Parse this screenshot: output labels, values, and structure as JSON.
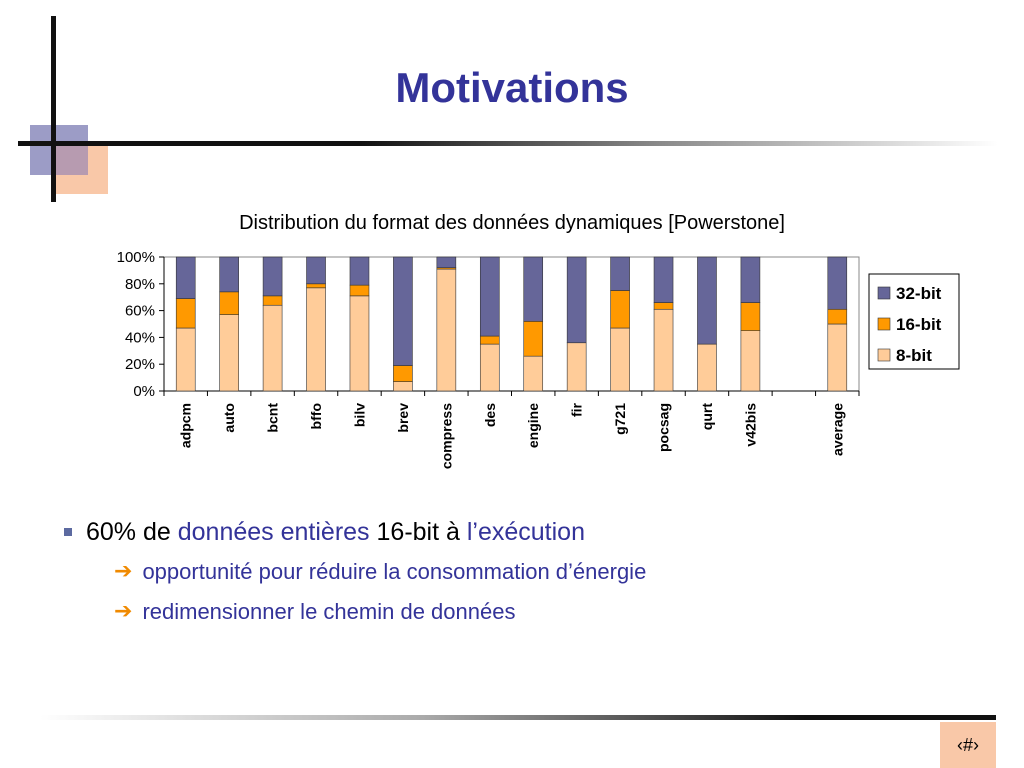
{
  "slide": {
    "title": "Motivations",
    "page_number": "‹#›"
  },
  "bullets": {
    "main_prefix": "60% de ",
    "main_highlight": "données entières",
    "main_middle": " 16-bit à ",
    "main_highlight2": "l’exécution",
    "sub1": "opportunité pour réduire la consommation d’énergie",
    "sub2": "redimensionner le chemin de données",
    "arrow_icon": "➔"
  },
  "chart_data": {
    "type": "bar",
    "stacked": true,
    "title": "Distribution du format des données dynamiques [Powerstone]",
    "categories": [
      "adpcm",
      "auto",
      "bcnt",
      "bffo",
      "bilv",
      "brev",
      "compress",
      "des",
      "engine",
      "fir",
      "g721",
      "pocsag",
      "qurt",
      "v42bis",
      "",
      "average"
    ],
    "series": [
      {
        "name": "8-bit",
        "color": "#ffcc99",
        "values": [
          47,
          57,
          64,
          77,
          71,
          7,
          91,
          35,
          26,
          36,
          47,
          61,
          35,
          45,
          null,
          50
        ]
      },
      {
        "name": "16-bit",
        "color": "#ff9900",
        "values": [
          22,
          17,
          7,
          3,
          8,
          12,
          1,
          6,
          26,
          0,
          28,
          5,
          0,
          21,
          null,
          11
        ]
      },
      {
        "name": "32-bit",
        "color": "#666699",
        "values": [
          31,
          26,
          29,
          20,
          21,
          81,
          8,
          59,
          48,
          64,
          25,
          34,
          65,
          34,
          null,
          39
        ]
      }
    ],
    "yticks": [
      "0%",
      "20%",
      "40%",
      "60%",
      "80%",
      "100%"
    ],
    "ylim": [
      0,
      100
    ],
    "legend": [
      "32-bit",
      "16-bit",
      "8-bit"
    ],
    "legend_position": "right",
    "grid": false
  }
}
